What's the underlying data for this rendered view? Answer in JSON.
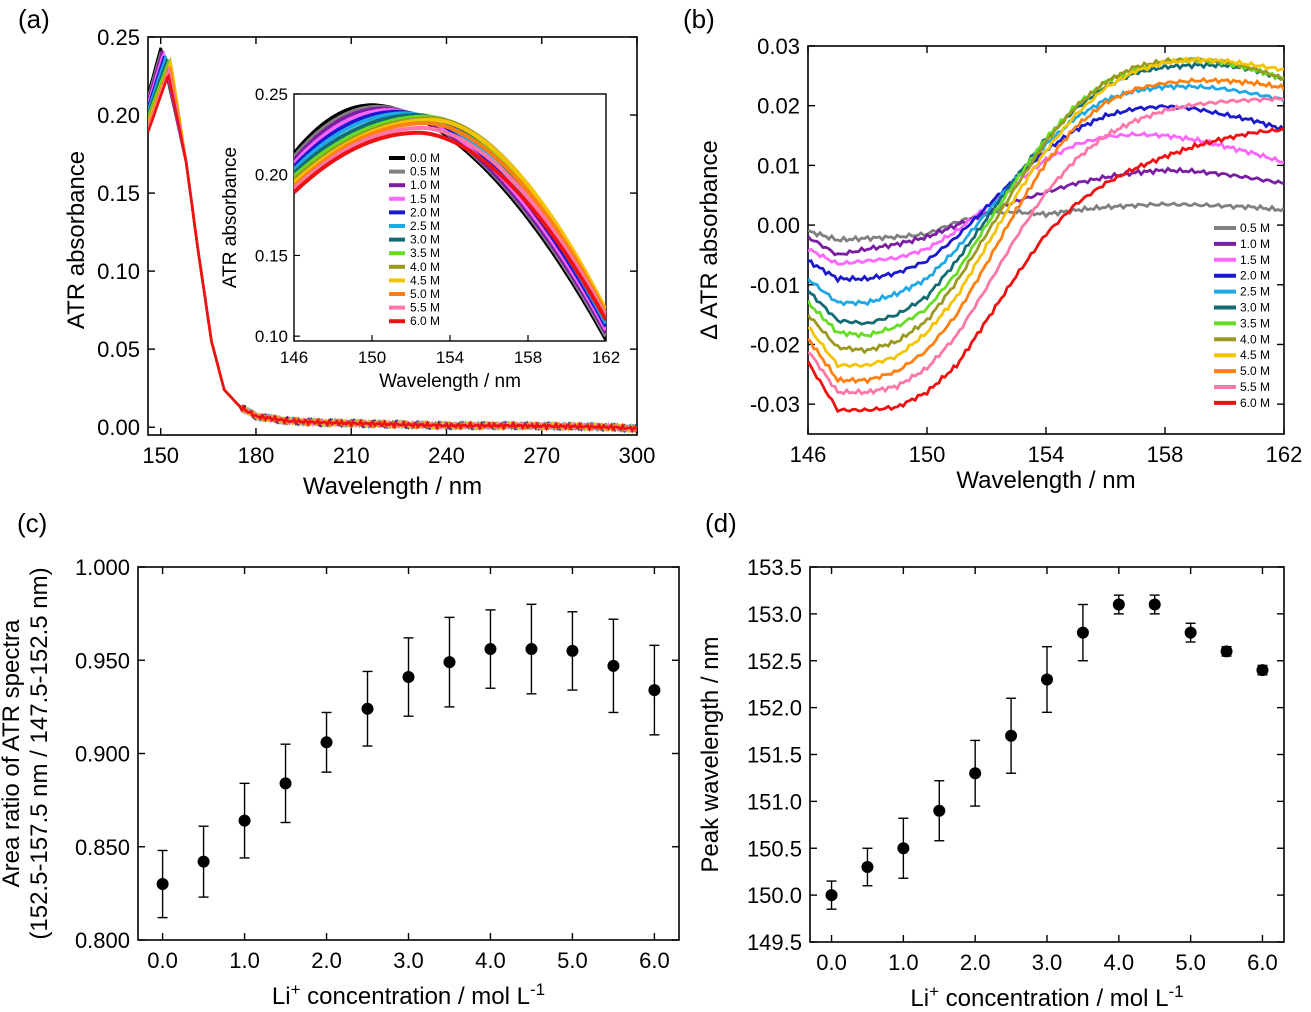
{
  "chart_data": [
    {
      "panel": "(a)",
      "type": "line",
      "xlabel": "Wavelength / nm",
      "ylabel": "ATR absorbance",
      "xlim": [
        146,
        300
      ],
      "ylim": [
        -0.005,
        0.25
      ],
      "xticks": [
        150,
        180,
        210,
        240,
        270,
        300
      ],
      "yticks": [
        0.0,
        0.05,
        0.1,
        0.15,
        0.2,
        0.25
      ],
      "xtick_labels": [
        "150",
        "180",
        "210",
        "240",
        "270",
        "300"
      ],
      "ytick_labels": [
        "0.00",
        "0.05",
        "0.10",
        "0.15",
        "0.20",
        "0.25"
      ],
      "series": [
        {
          "name": "0.0 M",
          "color": "#000000",
          "peak_nm": 150.0,
          "peak_value": 0.243,
          "start_value": 0.213
        },
        {
          "name": "0.5 M",
          "color": "#808080",
          "peak_nm": 150.3,
          "peak_value": 0.242,
          "start_value": 0.211
        },
        {
          "name": "1.0 M",
          "color": "#7b1fa2",
          "peak_nm": 150.5,
          "peak_value": 0.241,
          "start_value": 0.209
        },
        {
          "name": "1.5 M",
          "color": "#ff66ff",
          "peak_nm": 150.9,
          "peak_value": 0.24,
          "start_value": 0.207
        },
        {
          "name": "2.0 M",
          "color": "#1a1acc",
          "peak_nm": 151.3,
          "peak_value": 0.239,
          "start_value": 0.205
        },
        {
          "name": "2.5 M",
          "color": "#1fa8e6",
          "peak_nm": 151.7,
          "peak_value": 0.238,
          "start_value": 0.203
        },
        {
          "name": "3.0 M",
          "color": "#146b73",
          "peak_nm": 152.3,
          "peak_value": 0.237,
          "start_value": 0.201
        },
        {
          "name": "3.5 M",
          "color": "#66dd22",
          "peak_nm": 152.8,
          "peak_value": 0.236,
          "start_value": 0.199
        },
        {
          "name": "4.0 M",
          "color": "#9a9a20",
          "peak_nm": 153.1,
          "peak_value": 0.235,
          "start_value": 0.197
        },
        {
          "name": "4.5 M",
          "color": "#f5c400",
          "peak_nm": 153.1,
          "peak_value": 0.234,
          "start_value": 0.195
        },
        {
          "name": "5.0 M",
          "color": "#ff8010",
          "peak_nm": 152.8,
          "peak_value": 0.232,
          "start_value": 0.193
        },
        {
          "name": "5.5 M",
          "color": "#ff77aa",
          "peak_nm": 152.6,
          "peak_value": 0.229,
          "start_value": 0.191
        },
        {
          "name": "6.0 M",
          "color": "#ee1111",
          "peak_nm": 152.4,
          "peak_value": 0.226,
          "start_value": 0.189
        }
      ],
      "inset": {
        "xlabel": "Wavelength / nm",
        "ylabel": "ATR absorbance",
        "xlim": [
          146,
          162
        ],
        "ylim": [
          0.097,
          0.25
        ],
        "xticks": [
          146,
          150,
          154,
          158,
          162
        ],
        "yticks": [
          0.1,
          0.15,
          0.2,
          0.25
        ],
        "xtick_labels": [
          "146",
          "150",
          "154",
          "158",
          "162"
        ],
        "ytick_labels": [
          "0.10",
          "0.15",
          "0.20",
          "0.25"
        ],
        "legend": [
          "0.0 M",
          "0.5 M",
          "1.0 M",
          "1.5 M",
          "2.0 M",
          "2.5 M",
          "3.0 M",
          "3.5 M",
          "4.0 M",
          "4.5 M",
          "5.0 M",
          "5.5 M",
          "6.0 M"
        ],
        "end_values_at_162": [
          0.098,
          0.1,
          0.102,
          0.104,
          0.106,
          0.108,
          0.11,
          0.112,
          0.114,
          0.116,
          0.114,
          0.112,
          0.11
        ]
      }
    },
    {
      "panel": "(b)",
      "type": "line",
      "xlabel": "Wavelength / nm",
      "ylabel": "Δ ATR absorbance",
      "xlim": [
        146,
        162
      ],
      "ylim": [
        -0.035,
        0.03
      ],
      "xticks": [
        146,
        150,
        154,
        158,
        162
      ],
      "yticks": [
        -0.03,
        -0.02,
        -0.01,
        0.0,
        0.01,
        0.02,
        0.03
      ],
      "xtick_labels": [
        "146",
        "150",
        "154",
        "158",
        "162"
      ],
      "ytick_labels": [
        "-0.03",
        "-0.02",
        "-0.01",
        "0.00",
        "0.01",
        "0.02",
        "0.03"
      ],
      "legend": [
        "0.5 M",
        "1.0 M",
        "1.5 M",
        "2.0 M",
        "2.5 M",
        "3.0 M",
        "3.5 M",
        "4.0 M",
        "4.5 M",
        "5.0 M",
        "5.5 M",
        "6.0 M"
      ],
      "series": [
        {
          "name": "0.5 M",
          "color": "#808080",
          "x": [
            146,
            147,
            148,
            149,
            150,
            151,
            152,
            153,
            154,
            155,
            156,
            157,
            158,
            159,
            160,
            161,
            162
          ],
          "y": [
            -0.001,
            -0.0025,
            -0.0022,
            -0.002,
            -0.0015,
            0.0005,
            0.002,
            0.0022,
            0.0018,
            0.0025,
            0.003,
            0.0033,
            0.0035,
            0.0034,
            0.0032,
            0.003,
            0.0025
          ]
        },
        {
          "name": "1.0 M",
          "color": "#7b1fa2",
          "x": [
            146,
            147,
            148,
            149,
            150,
            151,
            152,
            153,
            154,
            155,
            156,
            157,
            158,
            159,
            160,
            161,
            162
          ],
          "y": [
            -0.002,
            -0.005,
            -0.004,
            -0.0032,
            -0.002,
            0.0,
            0.002,
            0.004,
            0.0055,
            0.007,
            0.008,
            0.0088,
            0.0092,
            0.009,
            0.0085,
            0.0078,
            0.007
          ]
        },
        {
          "name": "1.5 M",
          "color": "#ff66ff",
          "x": [
            146,
            147,
            148,
            149,
            150,
            151,
            152,
            153,
            154,
            155,
            156,
            157,
            158,
            159,
            160,
            161,
            162
          ],
          "y": [
            -0.004,
            -0.0065,
            -0.006,
            -0.0055,
            -0.004,
            -0.001,
            0.003,
            0.007,
            0.011,
            0.0135,
            0.0148,
            0.0152,
            0.015,
            0.0143,
            0.0132,
            0.012,
            0.0105
          ]
        },
        {
          "name": "2.0 M",
          "color": "#1a1acc",
          "x": [
            146,
            147,
            148,
            149,
            150,
            151,
            152,
            153,
            154,
            155,
            156,
            157,
            158,
            159,
            160,
            161,
            162
          ],
          "y": [
            -0.006,
            -0.009,
            -0.009,
            -0.008,
            -0.006,
            -0.002,
            0.003,
            0.008,
            0.0125,
            0.016,
            0.0183,
            0.0195,
            0.0199,
            0.0195,
            0.0185,
            0.0175,
            0.016
          ]
        },
        {
          "name": "2.5 M",
          "color": "#1fa8e6",
          "x": [
            146,
            147,
            148,
            149,
            150,
            151,
            152,
            153,
            154,
            155,
            156,
            157,
            158,
            159,
            160,
            161,
            162
          ],
          "y": [
            -0.009,
            -0.013,
            -0.013,
            -0.0115,
            -0.009,
            -0.004,
            0.002,
            0.008,
            0.0135,
            0.018,
            0.021,
            0.0225,
            0.0232,
            0.0232,
            0.0228,
            0.022,
            0.021
          ]
        },
        {
          "name": "3.0 M",
          "color": "#146b73",
          "x": [
            146,
            147,
            148,
            149,
            150,
            151,
            152,
            153,
            154,
            155,
            156,
            157,
            158,
            159,
            160,
            161,
            162
          ],
          "y": [
            -0.011,
            -0.016,
            -0.0165,
            -0.015,
            -0.012,
            -0.006,
            0.001,
            0.008,
            0.0145,
            0.0195,
            0.0232,
            0.0255,
            0.0265,
            0.0268,
            0.0268,
            0.026,
            0.0245
          ]
        },
        {
          "name": "3.5 M",
          "color": "#66dd22",
          "x": [
            146,
            147,
            148,
            149,
            150,
            151,
            152,
            153,
            154,
            155,
            156,
            157,
            158,
            159,
            160,
            161,
            162
          ],
          "y": [
            -0.013,
            -0.018,
            -0.0185,
            -0.017,
            -0.014,
            -0.008,
            0.0,
            0.0075,
            0.0145,
            0.02,
            0.024,
            0.0262,
            0.0273,
            0.0277,
            0.0272,
            0.026,
            0.0245
          ]
        },
        {
          "name": "4.0 M",
          "color": "#9a9a20",
          "x": [
            146,
            147,
            148,
            149,
            150,
            151,
            152,
            153,
            154,
            155,
            156,
            157,
            158,
            159,
            160,
            161,
            162
          ],
          "y": [
            -0.015,
            -0.0205,
            -0.021,
            -0.0195,
            -0.016,
            -0.0095,
            -0.0015,
            0.0065,
            0.014,
            0.0198,
            0.024,
            0.0265,
            0.0275,
            0.0278,
            0.0274,
            0.0262,
            0.0245
          ]
        },
        {
          "name": "4.5 M",
          "color": "#f5c400",
          "x": [
            146,
            147,
            148,
            149,
            150,
            151,
            152,
            153,
            154,
            155,
            156,
            157,
            158,
            159,
            160,
            161,
            162
          ],
          "y": [
            -0.017,
            -0.0235,
            -0.0235,
            -0.022,
            -0.018,
            -0.012,
            -0.0035,
            0.005,
            0.0125,
            0.0185,
            0.023,
            0.0258,
            0.0272,
            0.0277,
            0.0275,
            0.0268,
            0.026
          ]
        },
        {
          "name": "5.0 M",
          "color": "#ff8010",
          "x": [
            146,
            147,
            148,
            149,
            150,
            151,
            152,
            153,
            154,
            155,
            156,
            157,
            158,
            159,
            160,
            161,
            162
          ],
          "y": [
            -0.019,
            -0.026,
            -0.026,
            -0.0245,
            -0.021,
            -0.015,
            -0.0065,
            0.0025,
            0.0105,
            0.0165,
            0.0205,
            0.0228,
            0.0238,
            0.0242,
            0.0242,
            0.0238,
            0.023
          ]
        },
        {
          "name": "5.5 M",
          "color": "#ff77aa",
          "x": [
            146,
            147,
            148,
            149,
            150,
            151,
            152,
            153,
            154,
            155,
            156,
            157,
            158,
            159,
            160,
            161,
            162
          ],
          "y": [
            -0.021,
            -0.028,
            -0.028,
            -0.027,
            -0.024,
            -0.0185,
            -0.0105,
            -0.002,
            0.0055,
            0.011,
            0.015,
            0.0175,
            0.0192,
            0.0202,
            0.0207,
            0.021,
            0.0212
          ]
        },
        {
          "name": "6.0 M",
          "color": "#ee1111",
          "x": [
            146,
            147,
            148,
            149,
            150,
            151,
            152,
            153,
            154,
            155,
            156,
            157,
            158,
            159,
            160,
            161,
            162
          ],
          "y": [
            -0.023,
            -0.031,
            -0.031,
            -0.0305,
            -0.028,
            -0.0235,
            -0.016,
            -0.0085,
            -0.0015,
            0.0035,
            0.007,
            0.0095,
            0.0115,
            0.0132,
            0.0145,
            0.0155,
            0.016
          ]
        }
      ]
    },
    {
      "panel": "(c)",
      "type": "scatter",
      "xlabel": "Li+ concentration / mol L-1",
      "xlabel_parts": [
        "Li",
        "+",
        " concentration / mol L",
        "-1"
      ],
      "ylabel": "Area ratio of ATR spectra",
      "ylabel2": "(152.5-157.5 nm / 147.5-152.5 nm)",
      "xlim": [
        -0.3,
        6.3
      ],
      "ylim": [
        0.8,
        1.0
      ],
      "xticks": [
        0,
        1,
        2,
        3,
        4,
        5,
        6
      ],
      "yticks": [
        0.8,
        0.85,
        0.9,
        0.95,
        1.0
      ],
      "xtick_labels": [
        "0.0",
        "1.0",
        "2.0",
        "3.0",
        "4.0",
        "5.0",
        "6.0"
      ],
      "ytick_labels": [
        "0.800",
        "0.850",
        "0.900",
        "0.950",
        "1.000"
      ],
      "x": [
        0.0,
        0.5,
        1.0,
        1.5,
        2.0,
        2.5,
        3.0,
        3.5,
        4.0,
        4.5,
        5.0,
        5.5,
        6.0
      ],
      "y": [
        0.83,
        0.842,
        0.864,
        0.884,
        0.906,
        0.924,
        0.941,
        0.949,
        0.956,
        0.956,
        0.955,
        0.947,
        0.934
      ],
      "yerr": [
        0.018,
        0.019,
        0.02,
        0.021,
        0.016,
        0.02,
        0.021,
        0.024,
        0.021,
        0.024,
        0.021,
        0.025,
        0.024
      ]
    },
    {
      "panel": "(d)",
      "type": "scatter",
      "xlabel": "Li+ concentration / mol L-1",
      "xlabel_parts": [
        "Li",
        "+",
        " concentration / mol L",
        "-1"
      ],
      "ylabel": "Peak wavelength / nm",
      "xlim": [
        -0.3,
        6.3
      ],
      "ylim": [
        149.5,
        153.5
      ],
      "xticks": [
        0,
        1,
        2,
        3,
        4,
        5,
        6
      ],
      "yticks": [
        149.5,
        150.0,
        150.5,
        151.0,
        151.5,
        152.0,
        152.5,
        153.0,
        153.5
      ],
      "xtick_labels": [
        "0.0",
        "1.0",
        "2.0",
        "3.0",
        "4.0",
        "5.0",
        "6.0"
      ],
      "ytick_labels": [
        "149.5",
        "150.0",
        "150.5",
        "151.0",
        "151.5",
        "152.0",
        "152.5",
        "153.0",
        "153.5"
      ],
      "x": [
        0.0,
        0.5,
        1.0,
        1.5,
        2.0,
        2.5,
        3.0,
        3.5,
        4.0,
        4.5,
        5.0,
        5.5,
        6.0
      ],
      "y": [
        150.0,
        150.3,
        150.5,
        150.9,
        151.3,
        151.7,
        152.3,
        152.8,
        153.1,
        153.1,
        152.8,
        152.6,
        152.4
      ],
      "yerr": [
        0.15,
        0.2,
        0.32,
        0.32,
        0.35,
        0.4,
        0.35,
        0.3,
        0.1,
        0.1,
        0.1,
        0.05,
        0.05
      ]
    }
  ]
}
